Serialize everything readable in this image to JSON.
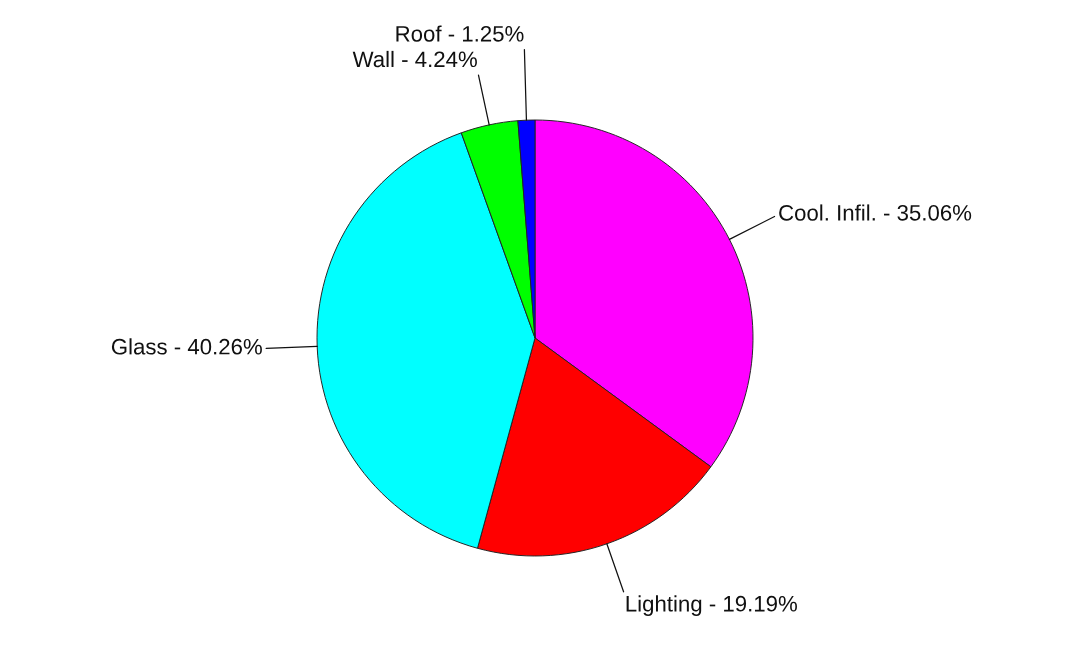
{
  "chart_data": {
    "type": "pie",
    "categories": [
      "Cool. Infil. - 35.06%",
      "Lighting - 19.19%",
      "Glass - 40.26%",
      "Wall - 4.24%",
      "Roof - 1.25%"
    ],
    "values": [
      35.06,
      19.19,
      40.26,
      4.24,
      1.25
    ],
    "colors": [
      "#ff00ff",
      "#ff0000",
      "#00ffff",
      "#00ff00",
      "#0000ff"
    ]
  }
}
